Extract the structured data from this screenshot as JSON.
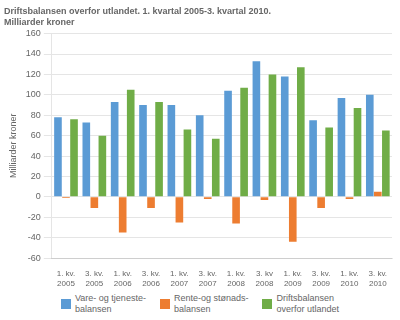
{
  "chart_data": {
    "type": "bar",
    "title": "Driftsbalansen overfor utlandet. 1. kvartal 2005-3. kvartal 2010.\nMilliarder kroner",
    "ylabel": "Milliarder kroner",
    "categories": [
      "1. kv.\n2005",
      "3. kv.\n2005",
      "1. kv.\n2006",
      "3. kv.\n2006",
      "1. kv.\n2007",
      "3. kv.\n2007",
      "1. kv.\n2008",
      "3. kv\n2008",
      "1. kv.\n2009",
      "3. kv.\n2009",
      "1. kv.\n2010",
      "3. kv.\n2010"
    ],
    "series": [
      {
        "name": "Vare- og tjeneste-\nbalansen",
        "color": "#5b9bd5",
        "values": [
          78,
          73,
          93,
          90,
          90,
          80,
          104,
          133,
          118,
          75,
          97,
          100
        ]
      },
      {
        "name": "Rente-og stønads-\nbalansen",
        "color": "#ed7d31",
        "values": [
          -1,
          -11,
          -35,
          -11,
          -25,
          -2,
          -26,
          -3,
          -44,
          -11,
          -2,
          5
        ]
      },
      {
        "name": "Driftsbalansen\noverfor utlandet",
        "color": "#70ad47",
        "values": [
          76,
          60,
          105,
          93,
          66,
          57,
          107,
          120,
          127,
          68,
          87,
          65
        ]
      }
    ],
    "ylim": [
      -60,
      160
    ],
    "yticks": [
      -60,
      -40,
      -20,
      0,
      20,
      40,
      60,
      80,
      100,
      120,
      140,
      160
    ],
    "grid": true,
    "legend": "bottom"
  }
}
